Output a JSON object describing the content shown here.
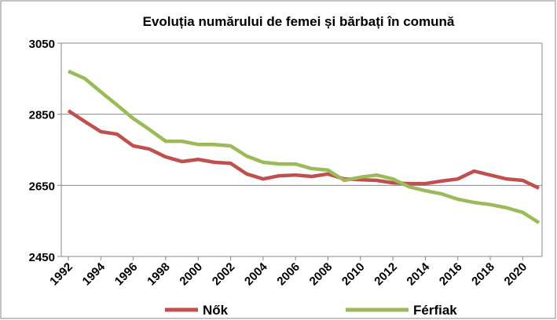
{
  "chart_data": {
    "type": "line",
    "title": "Evoluția numărului de femei și bărbați în comună",
    "x": [
      1992,
      1993,
      1994,
      1995,
      1996,
      1997,
      1998,
      1999,
      2000,
      2001,
      2002,
      2003,
      2004,
      2005,
      2006,
      2007,
      2008,
      2009,
      2010,
      2011,
      2012,
      2013,
      2014,
      2015,
      2016,
      2017,
      2018,
      2019,
      2020,
      2021
    ],
    "series": [
      {
        "name": "Nők",
        "color": "#c0504d",
        "values": [
          2860,
          2830,
          2801,
          2794,
          2761,
          2752,
          2730,
          2717,
          2723,
          2715,
          2712,
          2682,
          2668,
          2677,
          2679,
          2675,
          2682,
          2668,
          2666,
          2664,
          2657,
          2655,
          2655,
          2662,
          2668,
          2690,
          2679,
          2668,
          2664,
          2642
        ]
      },
      {
        "name": "Férfiak",
        "color": "#9bbb59",
        "values": [
          2971,
          2951,
          2913,
          2876,
          2838,
          2807,
          2774,
          2774,
          2765,
          2765,
          2761,
          2732,
          2715,
          2710,
          2710,
          2697,
          2693,
          2664,
          2673,
          2679,
          2668,
          2646,
          2635,
          2626,
          2611,
          2602,
          2596,
          2587,
          2574,
          2545
        ]
      }
    ],
    "xlim": [
      1992,
      2021
    ],
    "xticks": [
      1992,
      1994,
      1996,
      1998,
      2000,
      2002,
      2004,
      2006,
      2008,
      2010,
      2012,
      2014,
      2016,
      2018,
      2020
    ],
    "ylim": [
      2450,
      3050
    ],
    "yticks": [
      2450,
      2650,
      2850,
      3050
    ],
    "grid": true,
    "legend": "bottom"
  }
}
